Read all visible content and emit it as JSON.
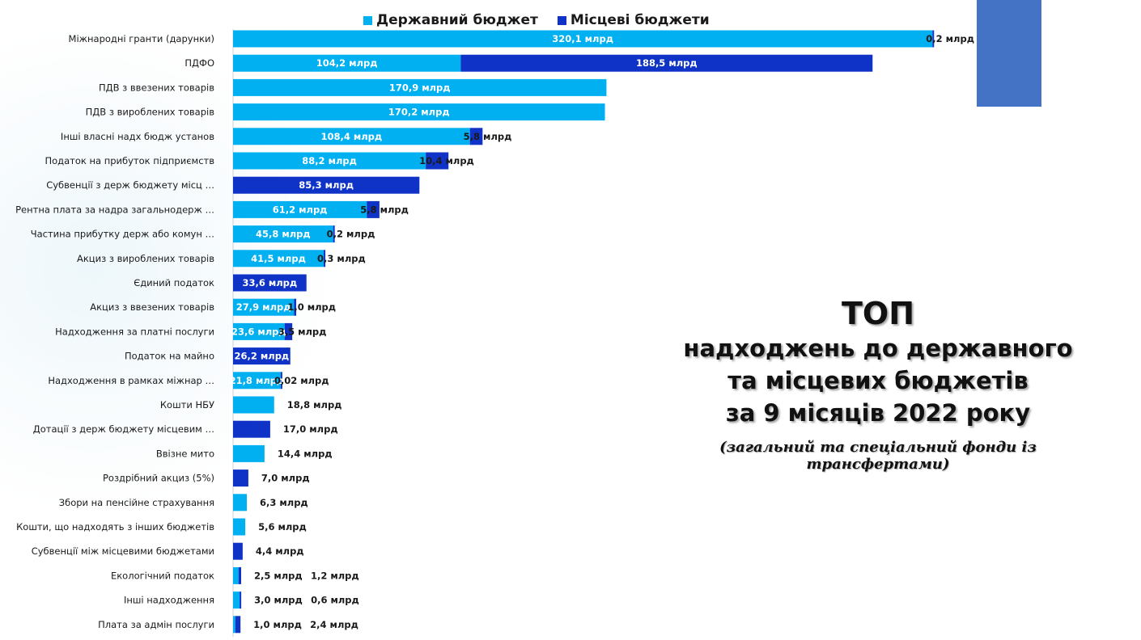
{
  "title": {
    "main": "ТОП",
    "line1": "надходжень до державного",
    "line2": "та місцевих бюджетів",
    "line3": "за 9 місяців 2022 року",
    "subtitle": "(загальний та спеціальний фонди із трансфертами)"
  },
  "colors": {
    "state": "#00b0f0",
    "local": "#0f33c6",
    "deco": "#4472c4"
  },
  "chart_data": {
    "type": "bar",
    "orientation": "horizontal",
    "stacked": true,
    "unit": "млрд",
    "legend_position": "top",
    "series": [
      {
        "name": "Державний бюджет",
        "color": "#00b0f0",
        "values": [
          320.1,
          104.2,
          170.9,
          170.2,
          108.4,
          88.2,
          null,
          61.2,
          45.8,
          41.5,
          null,
          27.9,
          23.6,
          null,
          21.8,
          18.8,
          null,
          14.4,
          null,
          6.3,
          5.6,
          null,
          2.5,
          3.0,
          1.0
        ]
      },
      {
        "name": "Місцеві бюджети",
        "color": "#0f33c6",
        "values": [
          0.2,
          188.5,
          null,
          null,
          5.8,
          10.4,
          85.3,
          5.8,
          0.2,
          0.3,
          33.6,
          1.0,
          3.5,
          26.2,
          0.02,
          null,
          17.0,
          null,
          7.0,
          null,
          null,
          4.4,
          1.2,
          0.6,
          2.4
        ]
      }
    ],
    "labels_state": [
      "320,1 млрд",
      "104,2 млрд",
      "170,9 млрд",
      "170,2 млрд",
      "108,4 млрд",
      "88,2 млрд",
      "",
      "61,2 млрд",
      "45,8 млрд",
      "41,5 млрд",
      "",
      "27,9 млрд",
      "23,6 млрд",
      "",
      "21,8 млрд",
      "18,8 млрд",
      "",
      "14,4 млрд",
      "",
      "6,3 млрд",
      "5,6 млрд",
      "",
      "2,5 млрд",
      "3,0 млрд",
      "1,0 млрд"
    ],
    "labels_local": [
      "0,2 млрд",
      "188,5 млрд",
      "",
      "",
      "5,8 млрд",
      "10,4 млрд",
      "85,3 млрд",
      "5,8 млрд",
      "0,2 млрд",
      "0,3 млрд",
      "33,6 млрд",
      "1,0 млрд",
      "3,5 млрд",
      "26,2 млрд",
      "0,02 млрд",
      "",
      "17,0 млрд",
      "",
      "7,0 млрд",
      "",
      "",
      "4,4 млрд",
      "1,2 млрд",
      "0,6 млрд",
      "2,4 млрд"
    ],
    "categories": [
      "Міжнародні гранти (дарунки)",
      "ПДФО",
      "ПДВ з ввезених товарів",
      "ПДВ з вироблених товарів",
      "Інші власні надх бюдж установ",
      "Податок на прибуток підприємств",
      "Субвенції з держ бюджету місц  …",
      "Рентна плата за надра загальнодерж  …",
      "Частина прибутку держ або комун  …",
      "Акциз з вироблених товарів",
      "Єдиний податок",
      "Акциз з ввезених товарів",
      "Надходження за платні послуги",
      "Податок на майно",
      "Надходження в рамках міжнар  …",
      "Кошти НБУ",
      "Дотації з держ бюджету місцевим  …",
      "Ввізне мито",
      "Роздрібний акциз (5%)",
      "Збори на пенсійне страхування",
      "Кошти, що надходять з інших бюджетів",
      "Субвенції між місцевими бюджетами",
      "Екологічний податок",
      "Інші надходження",
      "Плата за адмін послуги"
    ]
  }
}
